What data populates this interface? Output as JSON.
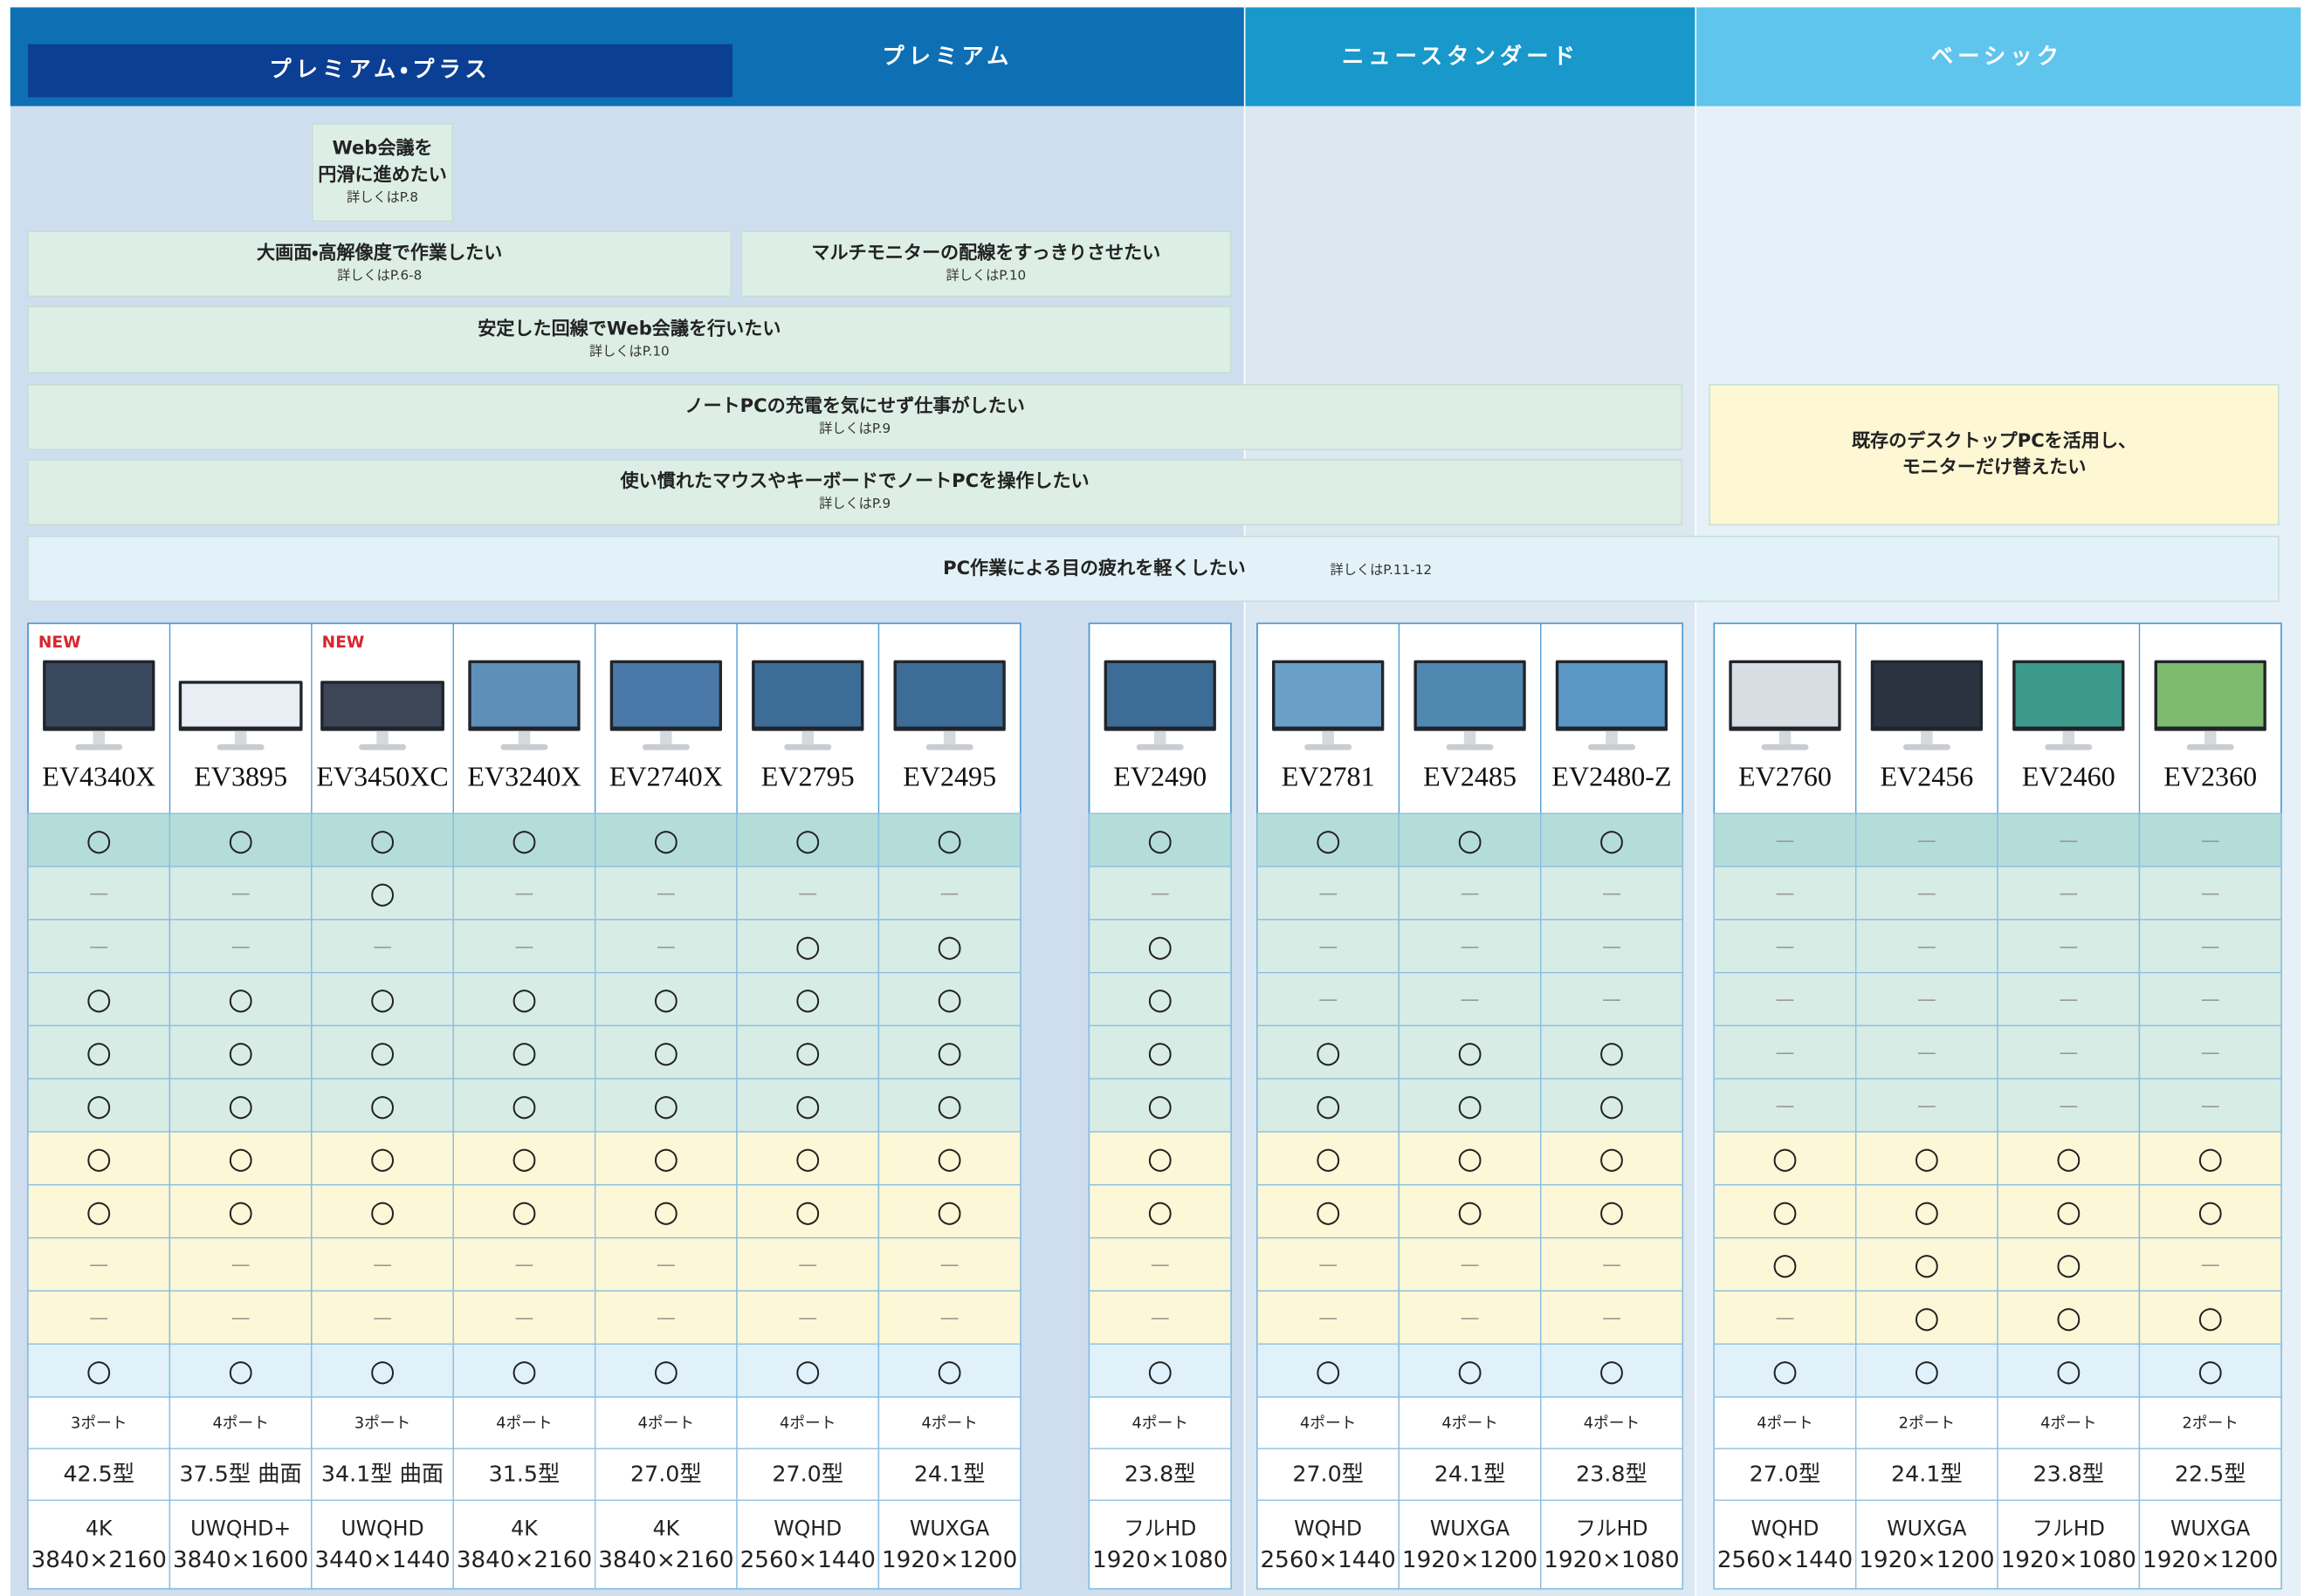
{
  "tiers": [
    "プレミアム・プラス",
    "プレミアム",
    "ニュースタンダード",
    "ベーシック"
  ],
  "needs": [
    {
      "lines": [
        "Web会議を",
        "円滑に進めたい"
      ],
      "ref": "詳しくはP.8"
    },
    {
      "lines": [
        "大画面・高解像度で作業したい"
      ],
      "ref": "詳しくはP.6-8"
    },
    {
      "lines": [
        "マルチモニターの配線をすっきりさせたい"
      ],
      "ref": "詳しくはP.10"
    },
    {
      "lines": [
        "安定した回線でWeb会議を行いたい"
      ],
      "ref": "詳しくはP.10"
    },
    {
      "lines": [
        "ノートPCの充電を気にせず仕事がしたい"
      ],
      "ref": "詳しくはP.9"
    },
    {
      "lines": [
        "使い慣れたマウスやキーボードでノートPCを操作したい"
      ],
      "ref": "詳しくはP.9"
    },
    {
      "lines": [
        "既存のデスクトップPCを活用し、",
        "モニターだけ替えたい"
      ]
    },
    {
      "lines": [
        "PC作業による目の疲れを軽くしたい"
      ],
      "ref": "詳しくはP.11-12"
    }
  ],
  "products": [
    {
      "name": "EV4340X",
      "badge": "NEW",
      "marks": [
        "○",
        "—",
        "—",
        "○",
        "○",
        "○",
        "○",
        "○",
        "—",
        "—",
        "○"
      ],
      "ports": "3ポート",
      "size": "42.5型",
      "res": "4K",
      "pixels": "3840×2160"
    },
    {
      "name": "EV3895",
      "marks": [
        "○",
        "—",
        "—",
        "○",
        "○",
        "○",
        "○",
        "○",
        "—",
        "—",
        "○"
      ],
      "ports": "4ポート",
      "size": "37.5型 曲面",
      "res": "UWQHD+",
      "pixels": "3840×1600"
    },
    {
      "name": "EV3450XC",
      "badge": "NEW",
      "marks": [
        "○",
        "○",
        "—",
        "○",
        "○",
        "○",
        "○",
        "○",
        "—",
        "—",
        "○"
      ],
      "ports": "3ポート",
      "size": "34.1型 曲面",
      "res": "UWQHD",
      "pixels": "3440×1440"
    },
    {
      "name": "EV3240X",
      "marks": [
        "○",
        "—",
        "—",
        "○",
        "○",
        "○",
        "○",
        "○",
        "—",
        "—",
        "○"
      ],
      "ports": "4ポート",
      "size": "31.5型",
      "res": "4K",
      "pixels": "3840×2160"
    },
    {
      "name": "EV2740X",
      "marks": [
        "○",
        "—",
        "—",
        "○",
        "○",
        "○",
        "○",
        "○",
        "—",
        "—",
        "○"
      ],
      "ports": "4ポート",
      "size": "27.0型",
      "res": "4K",
      "pixels": "3840×2160"
    },
    {
      "name": "EV2795",
      "marks": [
        "○",
        "—",
        "○",
        "○",
        "○",
        "○",
        "○",
        "○",
        "—",
        "—",
        "○"
      ],
      "ports": "4ポート",
      "size": "27.0型",
      "res": "WQHD",
      "pixels": "2560×1440"
    },
    {
      "name": "EV2495",
      "marks": [
        "○",
        "—",
        "○",
        "○",
        "○",
        "○",
        "○",
        "○",
        "—",
        "—",
        "○"
      ],
      "ports": "4ポート",
      "size": "24.1型",
      "res": "WUXGA",
      "pixels": "1920×1200"
    },
    {
      "name": "EV2490",
      "marks": [
        "○",
        "—",
        "○",
        "○",
        "○",
        "○",
        "○",
        "○",
        "—",
        "—",
        "○"
      ],
      "ports": "4ポート",
      "size": "23.8型",
      "res": "フルHD",
      "pixels": "1920×1080"
    },
    {
      "name": "EV2781",
      "marks": [
        "○",
        "—",
        "—",
        "—",
        "○",
        "○",
        "○",
        "○",
        "—",
        "—",
        "○"
      ],
      "ports": "4ポート",
      "size": "27.0型",
      "res": "WQHD",
      "pixels": "2560×1440"
    },
    {
      "name": "EV2485",
      "marks": [
        "○",
        "—",
        "—",
        "—",
        "○",
        "○",
        "○",
        "○",
        "—",
        "—",
        "○"
      ],
      "ports": "4ポート",
      "size": "24.1型",
      "res": "WUXGA",
      "pixels": "1920×1200"
    },
    {
      "name": "EV2480-Z",
      "marks": [
        "○",
        "—",
        "—",
        "—",
        "○",
        "○",
        "○",
        "○",
        "—",
        "—",
        "○"
      ],
      "ports": "4ポート",
      "size": "23.8型",
      "res": "フルHD",
      "pixels": "1920×1080"
    },
    {
      "name": "EV2760",
      "marks": [
        "—",
        "—",
        "—",
        "—",
        "—",
        "—",
        "○",
        "○",
        "○",
        "—",
        "○"
      ],
      "ports": "4ポート",
      "size": "27.0型",
      "res": "WQHD",
      "pixels": "2560×1440"
    },
    {
      "name": "EV2456",
      "marks": [
        "—",
        "—",
        "—",
        "—",
        "—",
        "—",
        "○",
        "○",
        "○",
        "○",
        "○"
      ],
      "ports": "2ポート",
      "size": "24.1型",
      "res": "WUXGA",
      "pixels": "1920×1200"
    },
    {
      "name": "EV2460",
      "marks": [
        "—",
        "—",
        "—",
        "—",
        "—",
        "—",
        "○",
        "○",
        "○",
        "○",
        "○"
      ],
      "ports": "4ポート",
      "size": "23.8型",
      "res": "フルHD",
      "pixels": "1920×1080"
    },
    {
      "name": "EV2360",
      "marks": [
        "—",
        "—",
        "—",
        "—",
        "—",
        "—",
        "○",
        "○",
        "—",
        "○",
        "○"
      ],
      "ports": "2ポート",
      "size": "22.5型",
      "res": "WUXGA",
      "pixels": "1920×1200"
    }
  ]
}
